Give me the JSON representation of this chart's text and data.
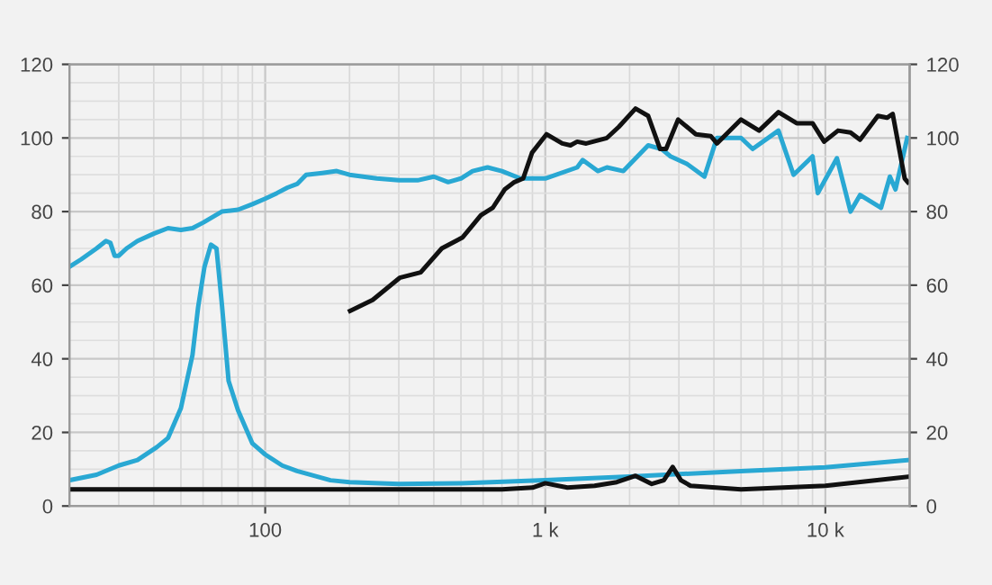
{
  "chart_data": {
    "type": "line",
    "xlim": [
      20,
      20000
    ],
    "log": "x",
    "xticks": [
      {
        "value": 100,
        "label": "100"
      },
      {
        "value": 1000,
        "label": "1 k"
      },
      {
        "value": 10000,
        "label": "10 k"
      }
    ],
    "ylim": [
      0,
      120
    ],
    "yticks": [
      0,
      20,
      40,
      60,
      80,
      100,
      120
    ],
    "y2lim": [
      0,
      120
    ],
    "y2ticks": [
      0,
      20,
      40,
      60,
      80,
      100,
      120
    ],
    "grid": true,
    "line_style": "solid",
    "marker": "none",
    "series": [
      {
        "color": "#29a8d3",
        "x": [
          20,
          22,
          25,
          27,
          28,
          29,
          30,
          32,
          35,
          40,
          45,
          50,
          55,
          60,
          70,
          80,
          90,
          100,
          110,
          120,
          130,
          140,
          160,
          180,
          200,
          250,
          300,
          350,
          400,
          450,
          500,
          550,
          622,
          700,
          815,
          1000,
          1300,
          1360,
          1540,
          1660,
          1900,
          2330,
          2600,
          2800,
          3200,
          3700,
          4100,
          5000,
          5500,
          6800,
          7700,
          9000,
          9400,
          11000,
          12300,
          13300,
          15800,
          17000,
          17800,
          19600
        ],
        "values": [
          65,
          67,
          70,
          72,
          71.5,
          68,
          68,
          70,
          72,
          74,
          75.5,
          75,
          75.5,
          77,
          80,
          80.5,
          82,
          83.5,
          85,
          86.5,
          87.5,
          90,
          90.5,
          91,
          90,
          89,
          88.5,
          88.5,
          89.5,
          88,
          89,
          91,
          92,
          91,
          89,
          89,
          92,
          94,
          91,
          92,
          91,
          98,
          97,
          95,
          93,
          89.5,
          100,
          100,
          97,
          102,
          90,
          95,
          85,
          94.5,
          80,
          84.5,
          81,
          89.5,
          86,
          100
        ]
      },
      {
        "color": "#111111",
        "x": [
          201,
          242,
          302,
          359,
          427,
          507,
          589,
          649,
          716,
          776,
          834,
          897,
          1010,
          1150,
          1230,
          1300,
          1400,
          1660,
          1830,
          2100,
          2330,
          2570,
          2700,
          2980,
          3450,
          3900,
          4100,
          5000,
          5800,
          6800,
          7900,
          9000,
          9900,
          11100,
          12300,
          13300,
          15400,
          16600,
          17400,
          19200,
          19700
        ],
        "values": [
          53,
          56,
          62,
          63.5,
          70,
          73,
          79,
          81,
          86,
          88,
          89,
          96,
          101,
          98.5,
          98,
          99,
          98.5,
          100,
          103,
          108,
          106,
          97,
          97,
          105,
          101,
          100.5,
          98.5,
          105,
          102,
          107,
          104,
          104,
          99,
          102,
          101.5,
          99.5,
          106,
          105.5,
          106.5,
          89,
          88
        ]
      },
      {
        "color": "#29a8d3",
        "x": [
          20,
          25,
          30,
          35,
          41,
          45,
          50,
          55,
          57.6,
          60.7,
          64,
          67,
          70,
          74,
          80,
          90,
          100,
          115,
          130,
          171,
          200,
          300,
          500,
          1000,
          2000,
          5000,
          10000,
          20000
        ],
        "values": [
          7,
          8.5,
          11,
          12.5,
          16,
          18.5,
          26.6,
          41,
          54,
          65,
          71,
          70,
          55,
          34,
          26,
          17,
          14,
          11,
          9.5,
          7,
          6.5,
          6,
          6.2,
          7,
          8,
          9.5,
          10.5,
          12.5
        ]
      },
      {
        "color": "#111111",
        "x": [
          20,
          700,
          900,
          1000,
          1200,
          1500,
          1800,
          2100,
          2400,
          2650,
          2850,
          3050,
          3300,
          5000,
          10000,
          20000
        ],
        "values": [
          4.5,
          4.5,
          5,
          6.2,
          5,
          5.5,
          6.5,
          8.2,
          6,
          7,
          10.6,
          7,
          5.5,
          4.5,
          5.5,
          8
        ]
      }
    ]
  }
}
